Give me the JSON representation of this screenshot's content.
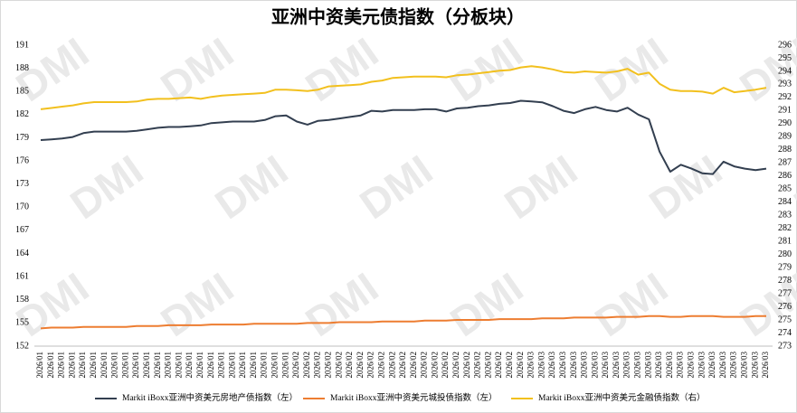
{
  "chart_data": {
    "type": "line",
    "title": "亚洲中资美元债指数（分板块）",
    "watermark": "DMI",
    "categories": [
      "2026/01",
      "2026/01",
      "2026/01",
      "2026/01",
      "2026/01",
      "2026/01",
      "2026/01",
      "2026/01",
      "2026/01",
      "2026/01",
      "2026/01",
      "2026/01",
      "2026/01",
      "2026/01",
      "2026/01",
      "2026/01",
      "2026/01",
      "2026/01",
      "2026/01",
      "2026/01",
      "2026/01",
      "2026/01",
      "2026/01",
      "2026/01",
      "2026/02",
      "2026/02",
      "2026/02",
      "2026/02",
      "2026/02",
      "2026/02",
      "2026/02",
      "2026/02",
      "2026/02",
      "2026/02",
      "2026/02",
      "2026/02",
      "2026/02",
      "2026/02",
      "2026/02",
      "2026/02",
      "2026/02",
      "2026/02",
      "2026/02",
      "2026/02",
      "2026/02",
      "2026/02",
      "2026/03",
      "2026/03",
      "2026/03",
      "2026/03",
      "2026/03",
      "2026/03",
      "2026/03",
      "2026/03",
      "2026/03",
      "2026/03",
      "2026/03",
      "2026/03",
      "2026/03",
      "2026/03",
      "2026/03",
      "2026/03",
      "2026/03",
      "2026/03",
      "2026/03",
      "2026/03",
      "2026/03",
      "2026/03",
      "2026/03"
    ],
    "series": [
      {
        "name": "Markit iBoxx亚洲中资美元房地产债指数（左）",
        "color": "#333f50",
        "values": [
          178.7,
          178.8,
          178.9,
          179.1,
          179.6,
          179.8,
          179.8,
          179.8,
          179.8,
          179.9,
          180.1,
          180.3,
          180.4,
          180.4,
          180.5,
          180.6,
          180.9,
          181.0,
          181.1,
          181.1,
          181.1,
          181.3,
          181.8,
          181.9,
          181.1,
          180.7,
          181.2,
          181.3,
          181.5,
          181.7,
          181.9,
          182.5,
          182.4,
          182.6,
          182.6,
          182.6,
          182.7,
          182.7,
          182.4,
          182.8,
          182.9,
          183.1,
          183.2,
          183.4,
          183.5,
          183.8,
          183.7,
          183.6,
          183.1,
          182.5,
          182.2,
          182.7,
          183.0,
          182.6,
          182.4,
          182.9,
          182.0,
          181.4,
          177.2,
          174.6,
          175.5,
          175.0,
          174.4,
          174.3,
          175.9,
          175.3,
          175.0,
          174.8,
          175.0
        ]
      },
      {
        "name": "Markit iBoxx亚洲中资美元城投债指数（左）",
        "color": "#ed7d31",
        "values": [
          154.3,
          154.4,
          154.4,
          154.4,
          154.5,
          154.5,
          154.5,
          154.5,
          154.5,
          154.6,
          154.6,
          154.6,
          154.7,
          154.7,
          154.7,
          154.7,
          154.8,
          154.8,
          154.8,
          154.8,
          154.9,
          154.9,
          154.9,
          154.9,
          154.9,
          155.0,
          155.0,
          155.0,
          155.1,
          155.1,
          155.1,
          155.1,
          155.2,
          155.2,
          155.2,
          155.2,
          155.3,
          155.3,
          155.3,
          155.4,
          155.4,
          155.4,
          155.4,
          155.5,
          155.5,
          155.5,
          155.5,
          155.6,
          155.6,
          155.6,
          155.7,
          155.7,
          155.7,
          155.7,
          155.8,
          155.8,
          155.8,
          155.9,
          155.9,
          155.8,
          155.8,
          155.9,
          155.9,
          155.9,
          155.8,
          155.8,
          155.8,
          155.9,
          155.9
        ]
      },
      {
        "name": "Markit iBoxx亚洲中资美元金融债指数（右）",
        "color": "#f2c01e",
        "axis": "y2",
        "values": [
          291.1,
          291.2,
          291.3,
          291.4,
          291.55,
          291.65,
          291.65,
          291.65,
          291.65,
          291.7,
          291.85,
          291.9,
          291.9,
          291.95,
          292.0,
          291.9,
          292.05,
          292.15,
          292.2,
          292.25,
          292.3,
          292.35,
          292.6,
          292.6,
          292.55,
          292.5,
          292.6,
          292.85,
          292.9,
          292.95,
          293.0,
          293.2,
          293.3,
          293.5,
          293.55,
          293.6,
          293.6,
          293.6,
          293.55,
          293.7,
          293.75,
          293.85,
          293.95,
          294.05,
          294.1,
          294.3,
          294.4,
          294.3,
          294.15,
          293.95,
          293.9,
          294.0,
          293.95,
          293.9,
          294.0,
          294.2,
          293.75,
          293.9,
          293.05,
          292.6,
          292.5,
          292.5,
          292.45,
          292.3,
          292.75,
          292.4,
          292.5,
          292.6,
          292.75
        ]
      }
    ],
    "ylim": [
      152,
      191
    ],
    "yticks": [
      152,
      155,
      158,
      161,
      164,
      167,
      170,
      173,
      176,
      179,
      182,
      185,
      188,
      191
    ],
    "y2lim": [
      273,
      296
    ],
    "y2ticks": [
      273,
      274,
      275,
      276,
      277,
      278,
      279,
      280,
      281,
      282,
      283,
      284,
      285,
      286,
      287,
      288,
      289,
      290,
      291,
      292,
      293,
      294,
      295,
      296
    ],
    "grid": false,
    "legend": "bottom"
  }
}
